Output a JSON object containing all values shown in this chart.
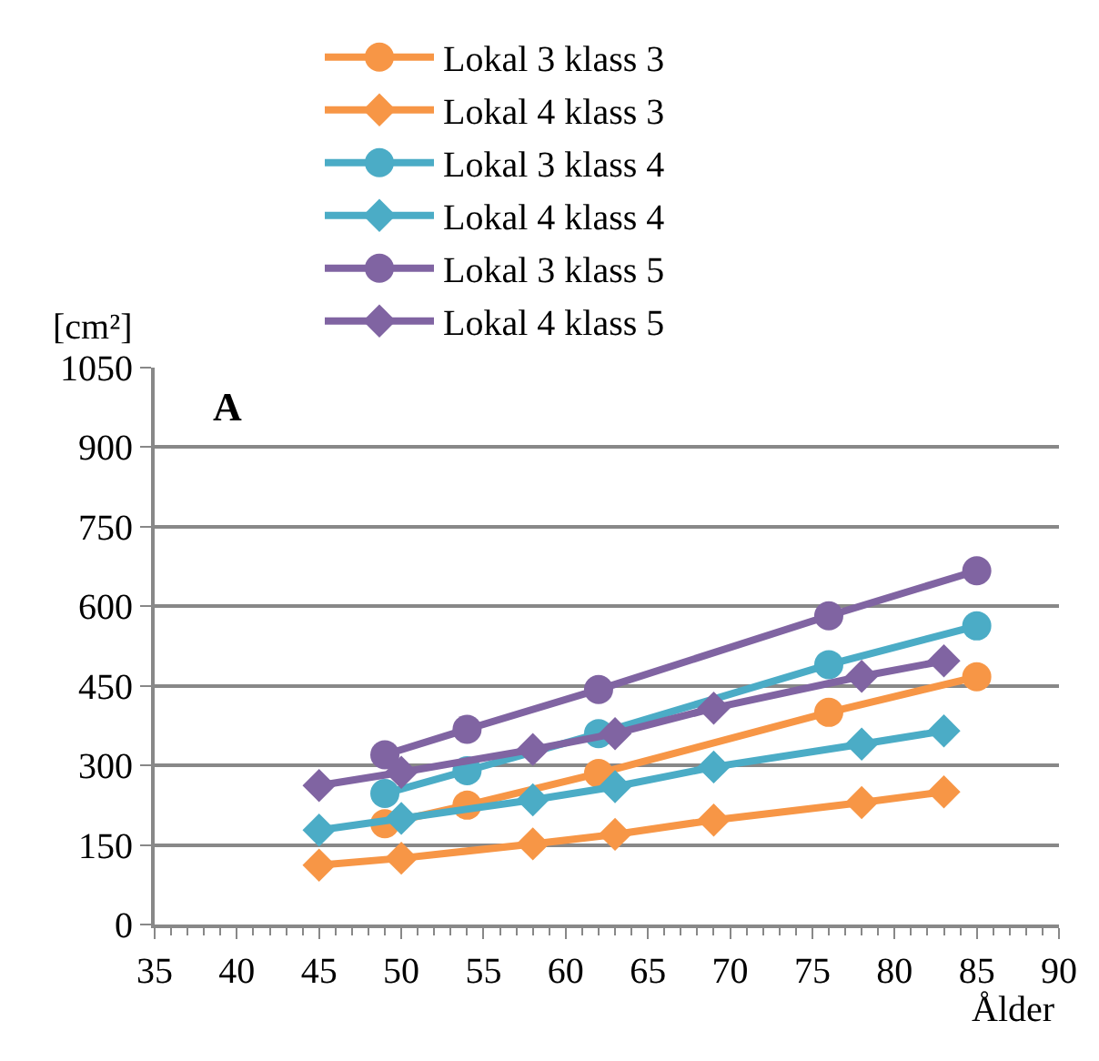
{
  "chart_data": {
    "type": "line",
    "ylabel": "[cm²]",
    "xlabel": "Ålder",
    "annotations": [
      "A"
    ],
    "xlim": [
      35,
      90
    ],
    "xticks": [
      35,
      40,
      45,
      50,
      55,
      60,
      65,
      70,
      75,
      80,
      85,
      90
    ],
    "ylim": [
      0,
      1050
    ],
    "yticks": [
      0,
      150,
      300,
      450,
      600,
      750,
      900,
      1050
    ],
    "grid": "y",
    "legend": "top",
    "line_style": "solid",
    "series": [
      {
        "name": "Lokal 3 klass 3",
        "color": "#f79646",
        "marker": "circle",
        "x": [
          49,
          54,
          62,
          76,
          85
        ],
        "values": [
          190,
          225,
          285,
          400,
          467
        ]
      },
      {
        "name": "Lokal 4 klass 3",
        "color": "#f79646",
        "marker": "diamond",
        "x": [
          45,
          50,
          58,
          63,
          69,
          78,
          83
        ],
        "values": [
          112,
          125,
          152,
          170,
          197,
          230,
          250
        ]
      },
      {
        "name": "Lokal 3 klass 4",
        "color": "#4bacc6",
        "marker": "circle",
        "x": [
          49,
          54,
          62,
          76,
          85
        ],
        "values": [
          247,
          290,
          360,
          490,
          563
        ]
      },
      {
        "name": "Lokal 4 klass 4",
        "color": "#4bacc6",
        "marker": "diamond",
        "x": [
          45,
          50,
          58,
          63,
          69,
          78,
          83
        ],
        "values": [
          178,
          200,
          235,
          260,
          297,
          340,
          365
        ]
      },
      {
        "name": "Lokal 3 klass 5",
        "color": "#8064a2",
        "marker": "circle",
        "x": [
          49,
          54,
          62,
          76,
          85
        ],
        "values": [
          320,
          368,
          443,
          582,
          667
        ]
      },
      {
        "name": "Lokal 4 klass 5",
        "color": "#8064a2",
        "marker": "diamond",
        "x": [
          45,
          50,
          58,
          63,
          69,
          78,
          83
        ],
        "values": [
          262,
          287,
          330,
          360,
          408,
          468,
          497
        ]
      }
    ]
  }
}
